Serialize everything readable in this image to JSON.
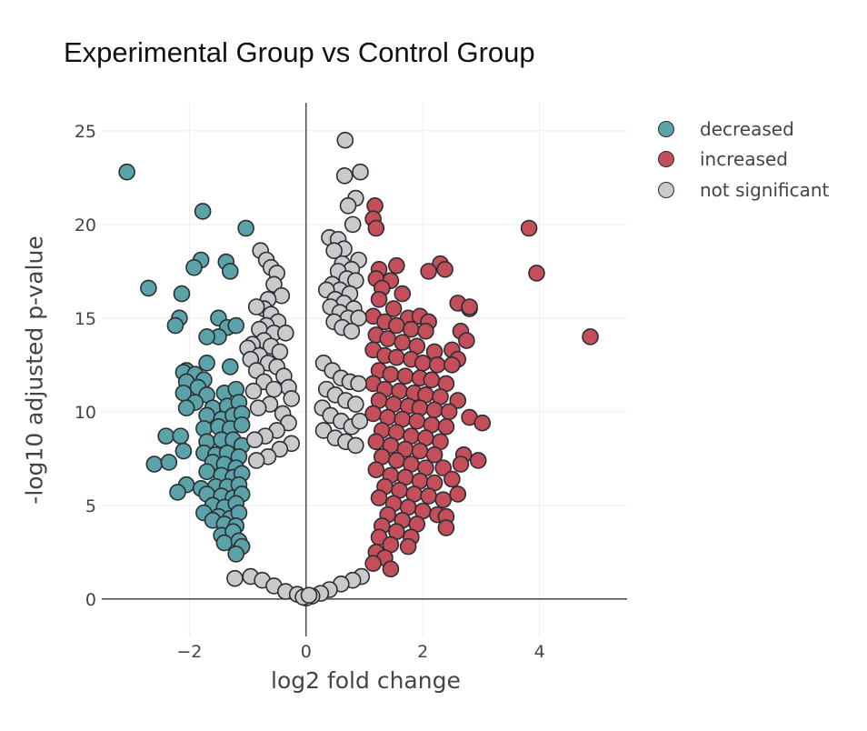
{
  "chart_data": {
    "type": "scatter",
    "title": "Experimental Group vs Control Group",
    "xlabel": "log2 fold change",
    "ylabel": "-log10 adjusted p-value",
    "xlim": [
      -3.5,
      5.5
    ],
    "ylim": [
      -2,
      26.5
    ],
    "x_ticks": [
      -2,
      0,
      2,
      4
    ],
    "x_tick_labels": [
      "−2",
      "0",
      "2",
      "4"
    ],
    "y_ticks": [
      0,
      5,
      10,
      15,
      20,
      25
    ],
    "y_tick_labels": [
      "0",
      "5",
      "10",
      "15",
      "20",
      "25"
    ],
    "grid": true,
    "legend_position": "top-right, outside plot",
    "colors": {
      "decreased": "#5ba3a9",
      "increased": "#c44e5a",
      "not significant": "#c8cacb",
      "marker_edge": "#2b2f33",
      "axis_line": "#333333",
      "grid": "#ececec"
    },
    "series": [
      {
        "name": "decreased",
        "color": "#5ba3a9",
        "points": [
          [
            -3.07,
            22.8
          ],
          [
            -1.77,
            20.7
          ],
          [
            -1.8,
            18.1
          ],
          [
            -1.92,
            17.7
          ],
          [
            -1.37,
            18.0
          ],
          [
            -1.3,
            17.5
          ],
          [
            -1.03,
            19.8
          ],
          [
            -2.7,
            16.6
          ],
          [
            -2.13,
            16.3
          ],
          [
            -2.17,
            15.0
          ],
          [
            -2.24,
            14.6
          ],
          [
            -1.5,
            15.0
          ],
          [
            -1.35,
            14.5
          ],
          [
            -1.2,
            14.6
          ],
          [
            -1.5,
            14.0
          ],
          [
            -1.7,
            14.0
          ],
          [
            -1.7,
            12.6
          ],
          [
            -1.3,
            12.4
          ],
          [
            -2.05,
            12.2
          ],
          [
            -2.1,
            12.1
          ],
          [
            -1.9,
            12.0
          ],
          [
            -1.75,
            11.7
          ],
          [
            -2.05,
            11.6
          ],
          [
            -1.85,
            11.3
          ],
          [
            -2.1,
            11.0
          ],
          [
            -1.7,
            10.9
          ],
          [
            -1.4,
            11.0
          ],
          [
            -1.2,
            11.2
          ],
          [
            -1.9,
            10.5
          ],
          [
            -2.05,
            10.2
          ],
          [
            -1.6,
            10.2
          ],
          [
            -1.35,
            10.3
          ],
          [
            -1.15,
            10.5
          ],
          [
            -1.7,
            9.8
          ],
          [
            -1.45,
            9.6
          ],
          [
            -1.25,
            9.8
          ],
          [
            -1.1,
            9.9
          ],
          [
            -1.75,
            9.1
          ],
          [
            -1.5,
            9.2
          ],
          [
            -1.3,
            9.1
          ],
          [
            -1.1,
            9.3
          ],
          [
            -2.4,
            8.7
          ],
          [
            -2.15,
            8.7
          ],
          [
            -1.7,
            8.4
          ],
          [
            -1.45,
            8.5
          ],
          [
            -1.25,
            8.5
          ],
          [
            -1.1,
            8.2
          ],
          [
            -2.1,
            7.9
          ],
          [
            -1.75,
            7.8
          ],
          [
            -1.55,
            7.7
          ],
          [
            -1.35,
            7.8
          ],
          [
            -1.15,
            7.6
          ],
          [
            -2.6,
            7.2
          ],
          [
            -2.35,
            7.3
          ],
          [
            -1.6,
            7.3
          ],
          [
            -1.4,
            7.2
          ],
          [
            -1.2,
            7.0
          ],
          [
            -1.7,
            6.8
          ],
          [
            -1.45,
            6.6
          ],
          [
            -1.25,
            6.5
          ],
          [
            -1.1,
            6.7
          ],
          [
            -2.05,
            6.1
          ],
          [
            -1.8,
            5.9
          ],
          [
            -1.55,
            6.0
          ],
          [
            -1.35,
            6.0
          ],
          [
            -1.15,
            6.1
          ],
          [
            -2.2,
            5.7
          ],
          [
            -1.7,
            5.6
          ],
          [
            -1.45,
            5.5
          ],
          [
            -1.25,
            5.4
          ],
          [
            -1.1,
            5.6
          ],
          [
            -1.6,
            5.0
          ],
          [
            -1.4,
            4.9
          ],
          [
            -1.2,
            5.1
          ],
          [
            -1.75,
            4.6
          ],
          [
            -1.5,
            4.4
          ],
          [
            -1.3,
            4.3
          ],
          [
            -1.15,
            4.6
          ],
          [
            -1.6,
            4.2
          ],
          [
            -1.4,
            4.0
          ],
          [
            -1.2,
            3.9
          ],
          [
            -1.45,
            3.4
          ],
          [
            -1.25,
            3.6
          ],
          [
            -1.4,
            3.0
          ],
          [
            -1.15,
            3.1
          ],
          [
            -1.1,
            2.8
          ],
          [
            -1.2,
            2.4
          ]
        ]
      },
      {
        "name": "increased",
        "color": "#c44e5a",
        "points": [
          [
            3.82,
            19.8
          ],
          [
            3.95,
            17.4
          ],
          [
            4.87,
            14.0
          ],
          [
            1.18,
            21.0
          ],
          [
            1.15,
            20.3
          ],
          [
            1.2,
            19.8
          ],
          [
            2.3,
            17.9
          ],
          [
            2.38,
            17.6
          ],
          [
            2.1,
            17.5
          ],
          [
            1.55,
            17.8
          ],
          [
            1.25,
            17.6
          ],
          [
            1.2,
            17.1
          ],
          [
            1.45,
            17.0
          ],
          [
            1.3,
            16.6
          ],
          [
            1.65,
            16.3
          ],
          [
            2.6,
            15.8
          ],
          [
            2.8,
            15.5
          ],
          [
            2.8,
            15.6
          ],
          [
            1.25,
            16.0
          ],
          [
            1.5,
            15.5
          ],
          [
            1.75,
            15.0
          ],
          [
            1.95,
            15.1
          ],
          [
            2.1,
            14.8
          ],
          [
            1.15,
            15.1
          ],
          [
            1.35,
            14.8
          ],
          [
            1.55,
            14.6
          ],
          [
            1.8,
            14.4
          ],
          [
            2.05,
            14.3
          ],
          [
            2.65,
            14.3
          ],
          [
            2.75,
            13.8
          ],
          [
            1.2,
            14.1
          ],
          [
            1.4,
            13.9
          ],
          [
            1.65,
            13.7
          ],
          [
            1.9,
            13.5
          ],
          [
            2.2,
            13.2
          ],
          [
            2.5,
            13.3
          ],
          [
            2.6,
            12.8
          ],
          [
            1.15,
            13.3
          ],
          [
            1.35,
            13.0
          ],
          [
            1.55,
            12.9
          ],
          [
            1.8,
            12.8
          ],
          [
            2.0,
            12.6
          ],
          [
            2.25,
            12.5
          ],
          [
            2.5,
            12.5
          ],
          [
            1.25,
            12.2
          ],
          [
            1.45,
            12.0
          ],
          [
            1.7,
            11.9
          ],
          [
            1.95,
            11.8
          ],
          [
            2.15,
            11.7
          ],
          [
            2.4,
            11.5
          ],
          [
            1.15,
            11.5
          ],
          [
            1.35,
            11.2
          ],
          [
            1.6,
            11.1
          ],
          [
            1.85,
            11.0
          ],
          [
            2.05,
            10.9
          ],
          [
            2.3,
            10.8
          ],
          [
            2.6,
            10.6
          ],
          [
            1.25,
            10.6
          ],
          [
            1.5,
            10.4
          ],
          [
            1.75,
            10.3
          ],
          [
            1.95,
            10.2
          ],
          [
            2.2,
            10.1
          ],
          [
            2.45,
            10.0
          ],
          [
            1.15,
            9.9
          ],
          [
            1.4,
            9.7
          ],
          [
            1.65,
            9.6
          ],
          [
            1.9,
            9.5
          ],
          [
            2.15,
            9.3
          ],
          [
            2.4,
            9.2
          ],
          [
            2.8,
            9.7
          ],
          [
            3.02,
            9.4
          ],
          [
            1.3,
            9.0
          ],
          [
            1.55,
            8.9
          ],
          [
            1.8,
            8.7
          ],
          [
            2.05,
            8.6
          ],
          [
            2.3,
            8.4
          ],
          [
            1.2,
            8.4
          ],
          [
            1.45,
            8.2
          ],
          [
            1.7,
            8.0
          ],
          [
            1.95,
            7.9
          ],
          [
            2.2,
            7.7
          ],
          [
            2.7,
            7.7
          ],
          [
            2.95,
            7.4
          ],
          [
            1.3,
            7.6
          ],
          [
            1.55,
            7.4
          ],
          [
            1.8,
            7.2
          ],
          [
            2.05,
            7.0
          ],
          [
            2.35,
            7.0
          ],
          [
            2.65,
            7.2
          ],
          [
            1.2,
            6.9
          ],
          [
            1.45,
            6.6
          ],
          [
            1.7,
            6.5
          ],
          [
            1.95,
            6.3
          ],
          [
            2.2,
            6.2
          ],
          [
            2.5,
            6.4
          ],
          [
            1.35,
            6.0
          ],
          [
            1.6,
            5.8
          ],
          [
            1.85,
            5.6
          ],
          [
            2.1,
            5.5
          ],
          [
            2.35,
            5.3
          ],
          [
            2.6,
            5.6
          ],
          [
            1.25,
            5.4
          ],
          [
            1.5,
            5.1
          ],
          [
            1.75,
            4.9
          ],
          [
            2.0,
            4.7
          ],
          [
            2.25,
            4.5
          ],
          [
            2.4,
            4.4
          ],
          [
            1.4,
            4.5
          ],
          [
            1.65,
            4.2
          ],
          [
            1.9,
            4.0
          ],
          [
            2.4,
            3.8
          ],
          [
            1.3,
            3.9
          ],
          [
            1.55,
            3.6
          ],
          [
            1.8,
            3.3
          ],
          [
            1.25,
            3.3
          ],
          [
            1.45,
            2.9
          ],
          [
            1.75,
            2.8
          ],
          [
            1.2,
            2.5
          ],
          [
            1.35,
            2.2
          ],
          [
            1.45,
            1.6
          ],
          [
            1.15,
            1.9
          ]
        ]
      },
      {
        "name": "not significant",
        "color": "#c8cacb",
        "points": [
          [
            0.67,
            24.5
          ],
          [
            0.93,
            22.8
          ],
          [
            0.66,
            22.6
          ],
          [
            0.85,
            21.4
          ],
          [
            0.72,
            21.0
          ],
          [
            0.8,
            20.0
          ],
          [
            0.4,
            19.3
          ],
          [
            0.55,
            19.2
          ],
          [
            0.65,
            18.7
          ],
          [
            0.48,
            18.6
          ],
          [
            0.9,
            18.1
          ],
          [
            0.62,
            17.9
          ],
          [
            0.78,
            17.6
          ],
          [
            0.55,
            17.5
          ],
          [
            0.7,
            17.1
          ],
          [
            0.85,
            17.0
          ],
          [
            0.45,
            16.8
          ],
          [
            0.58,
            16.5
          ],
          [
            0.75,
            16.3
          ],
          [
            0.35,
            16.5
          ],
          [
            0.5,
            16.0
          ],
          [
            0.65,
            15.8
          ],
          [
            0.82,
            15.5
          ],
          [
            0.42,
            15.6
          ],
          [
            0.58,
            15.3
          ],
          [
            0.72,
            15.0
          ],
          [
            0.9,
            15.0
          ],
          [
            0.48,
            14.8
          ],
          [
            0.62,
            14.5
          ],
          [
            0.78,
            14.3
          ],
          [
            -0.78,
            18.6
          ],
          [
            -0.68,
            18.1
          ],
          [
            -0.6,
            17.7
          ],
          [
            -0.5,
            17.4
          ],
          [
            -0.55,
            16.8
          ],
          [
            -0.42,
            16.2
          ],
          [
            -0.65,
            16.0
          ],
          [
            -0.72,
            15.5
          ],
          [
            -0.85,
            15.6
          ],
          [
            -0.6,
            15.2
          ],
          [
            -0.48,
            14.8
          ],
          [
            -0.68,
            14.6
          ],
          [
            -0.8,
            14.4
          ],
          [
            -0.55,
            14.2
          ],
          [
            -0.35,
            14.2
          ],
          [
            -0.72,
            13.8
          ],
          [
            -0.92,
            13.6
          ],
          [
            -1.0,
            13.4
          ],
          [
            -0.6,
            13.5
          ],
          [
            -0.45,
            13.2
          ],
          [
            -0.8,
            13.0
          ],
          [
            -0.95,
            12.8
          ],
          [
            -0.65,
            12.6
          ],
          [
            -0.5,
            12.4
          ],
          [
            -0.85,
            12.2
          ],
          [
            -0.38,
            11.9
          ],
          [
            -0.72,
            11.6
          ],
          [
            -0.3,
            11.3
          ],
          [
            -0.55,
            11.2
          ],
          [
            -0.9,
            11.1
          ],
          [
            -0.25,
            10.7
          ],
          [
            -0.62,
            10.4
          ],
          [
            -0.82,
            10.2
          ],
          [
            -0.4,
            9.9
          ],
          [
            0.3,
            12.6
          ],
          [
            0.45,
            12.2
          ],
          [
            0.6,
            11.8
          ],
          [
            0.75,
            11.6
          ],
          [
            0.9,
            11.5
          ],
          [
            0.35,
            11.2
          ],
          [
            0.5,
            10.9
          ],
          [
            0.68,
            10.6
          ],
          [
            0.85,
            10.4
          ],
          [
            0.28,
            10.2
          ],
          [
            0.42,
            9.8
          ],
          [
            0.6,
            9.5
          ],
          [
            0.78,
            9.2
          ],
          [
            0.92,
            9.5
          ],
          [
            0.3,
            9.0
          ],
          [
            0.5,
            8.6
          ],
          [
            0.68,
            8.4
          ],
          [
            0.85,
            8.2
          ],
          [
            -0.3,
            9.4
          ],
          [
            -0.5,
            9.0
          ],
          [
            -0.7,
            8.7
          ],
          [
            -0.88,
            8.5
          ],
          [
            -0.25,
            8.3
          ],
          [
            -0.45,
            8.0
          ],
          [
            -0.65,
            7.6
          ],
          [
            -0.85,
            7.4
          ],
          [
            -1.22,
            1.1
          ],
          [
            -0.95,
            1.2
          ],
          [
            -0.75,
            1.0
          ],
          [
            0.95,
            1.2
          ],
          [
            0.8,
            1.0
          ],
          [
            -0.55,
            0.7
          ],
          [
            0.6,
            0.8
          ],
          [
            0.4,
            0.5
          ],
          [
            -0.35,
            0.4
          ],
          [
            0.25,
            0.3
          ],
          [
            -0.15,
            0.25
          ],
          [
            0.1,
            0.15
          ],
          [
            0.0,
            0.05
          ],
          [
            -0.05,
            0.1
          ],
          [
            0.05,
            0.2
          ]
        ]
      }
    ]
  }
}
